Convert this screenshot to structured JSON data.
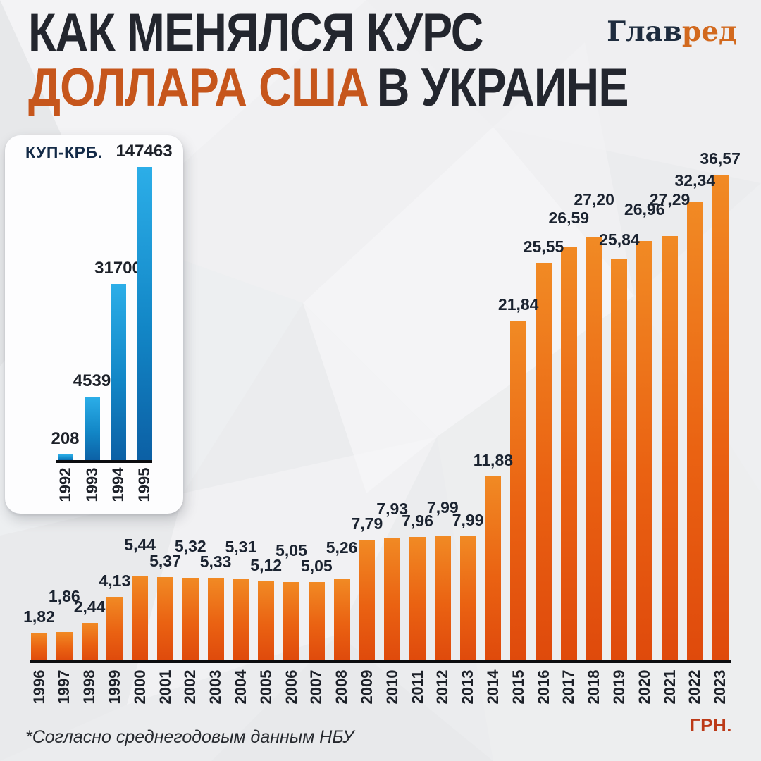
{
  "header": {
    "title_line1": "КАК МЕНЯЛСЯ КУРС",
    "title_line2_accent": "ДОЛЛАРА США",
    "title_line2_rest": "В УКРАИНЕ",
    "logo_part1": "Глав",
    "logo_part2": "ред"
  },
  "footnote": "*Согласно среднегодовым данным НБУ",
  "chart_data": [
    {
      "id": "inset-kupon-karbovanets",
      "type": "bar",
      "title": "КУП-КРБ.",
      "categories": [
        "1992",
        "1993",
        "1994",
        "1995"
      ],
      "values": [
        208,
        4539,
        31700,
        147463
      ],
      "value_labels": [
        "208",
        "4539",
        "31700",
        "147463"
      ],
      "grid": false,
      "legend_position": "none",
      "scale_note": "display-compressed (non-linear)",
      "bar_color_top": "#2caee8",
      "bar_color_bottom": "#0c5fa4"
    },
    {
      "id": "main-usd-uah",
      "type": "bar",
      "unit_label": "ГРН.",
      "categories": [
        "1996",
        "1997",
        "1998",
        "1999",
        "2000",
        "2001",
        "2002",
        "2003",
        "2004",
        "2005",
        "2006",
        "2007",
        "2008",
        "2009",
        "2010",
        "2011",
        "2012",
        "2013",
        "2014",
        "2015",
        "2016",
        "2017",
        "2018",
        "2019",
        "2020",
        "2021",
        "2022",
        "2023"
      ],
      "values": [
        1.82,
        1.86,
        2.44,
        4.13,
        5.44,
        5.37,
        5.32,
        5.33,
        5.31,
        5.12,
        5.05,
        5.05,
        5.26,
        7.79,
        7.93,
        7.96,
        7.99,
        7.99,
        11.88,
        21.84,
        25.55,
        26.59,
        27.2,
        25.84,
        26.96,
        27.29,
        32.34,
        36.57
      ],
      "value_labels": [
        "1,82",
        "1,86",
        "2,44",
        "4,13",
        "5,44",
        "5,37",
        "5,32",
        "5,33",
        "5,31",
        "5,12",
        "5,05",
        "5,05",
        "5,26",
        "7,79",
        "7,93",
        "7,96",
        "7,99",
        "7,99",
        "11,88",
        "21,84",
        "25,55",
        "26,59",
        "27,20",
        "25,84",
        "26,96",
        "27,29",
        "32,34",
        "36,57"
      ],
      "grid": false,
      "legend_position": "none",
      "bar_color_top": "#f18a24",
      "bar_color_bottom": "#df4a0c"
    }
  ],
  "colors": {
    "background": "#ebecee",
    "title_dark": "#23262e",
    "title_accent_orange": "#c6561c",
    "logo_navy": "#1e2c3e",
    "logo_orange": "#d2691e",
    "inset_title_navy": "#132a47",
    "label_dark": "#1b2330",
    "unit_label_red": "#bc3a18",
    "axis_black": "#0c0d10"
  }
}
